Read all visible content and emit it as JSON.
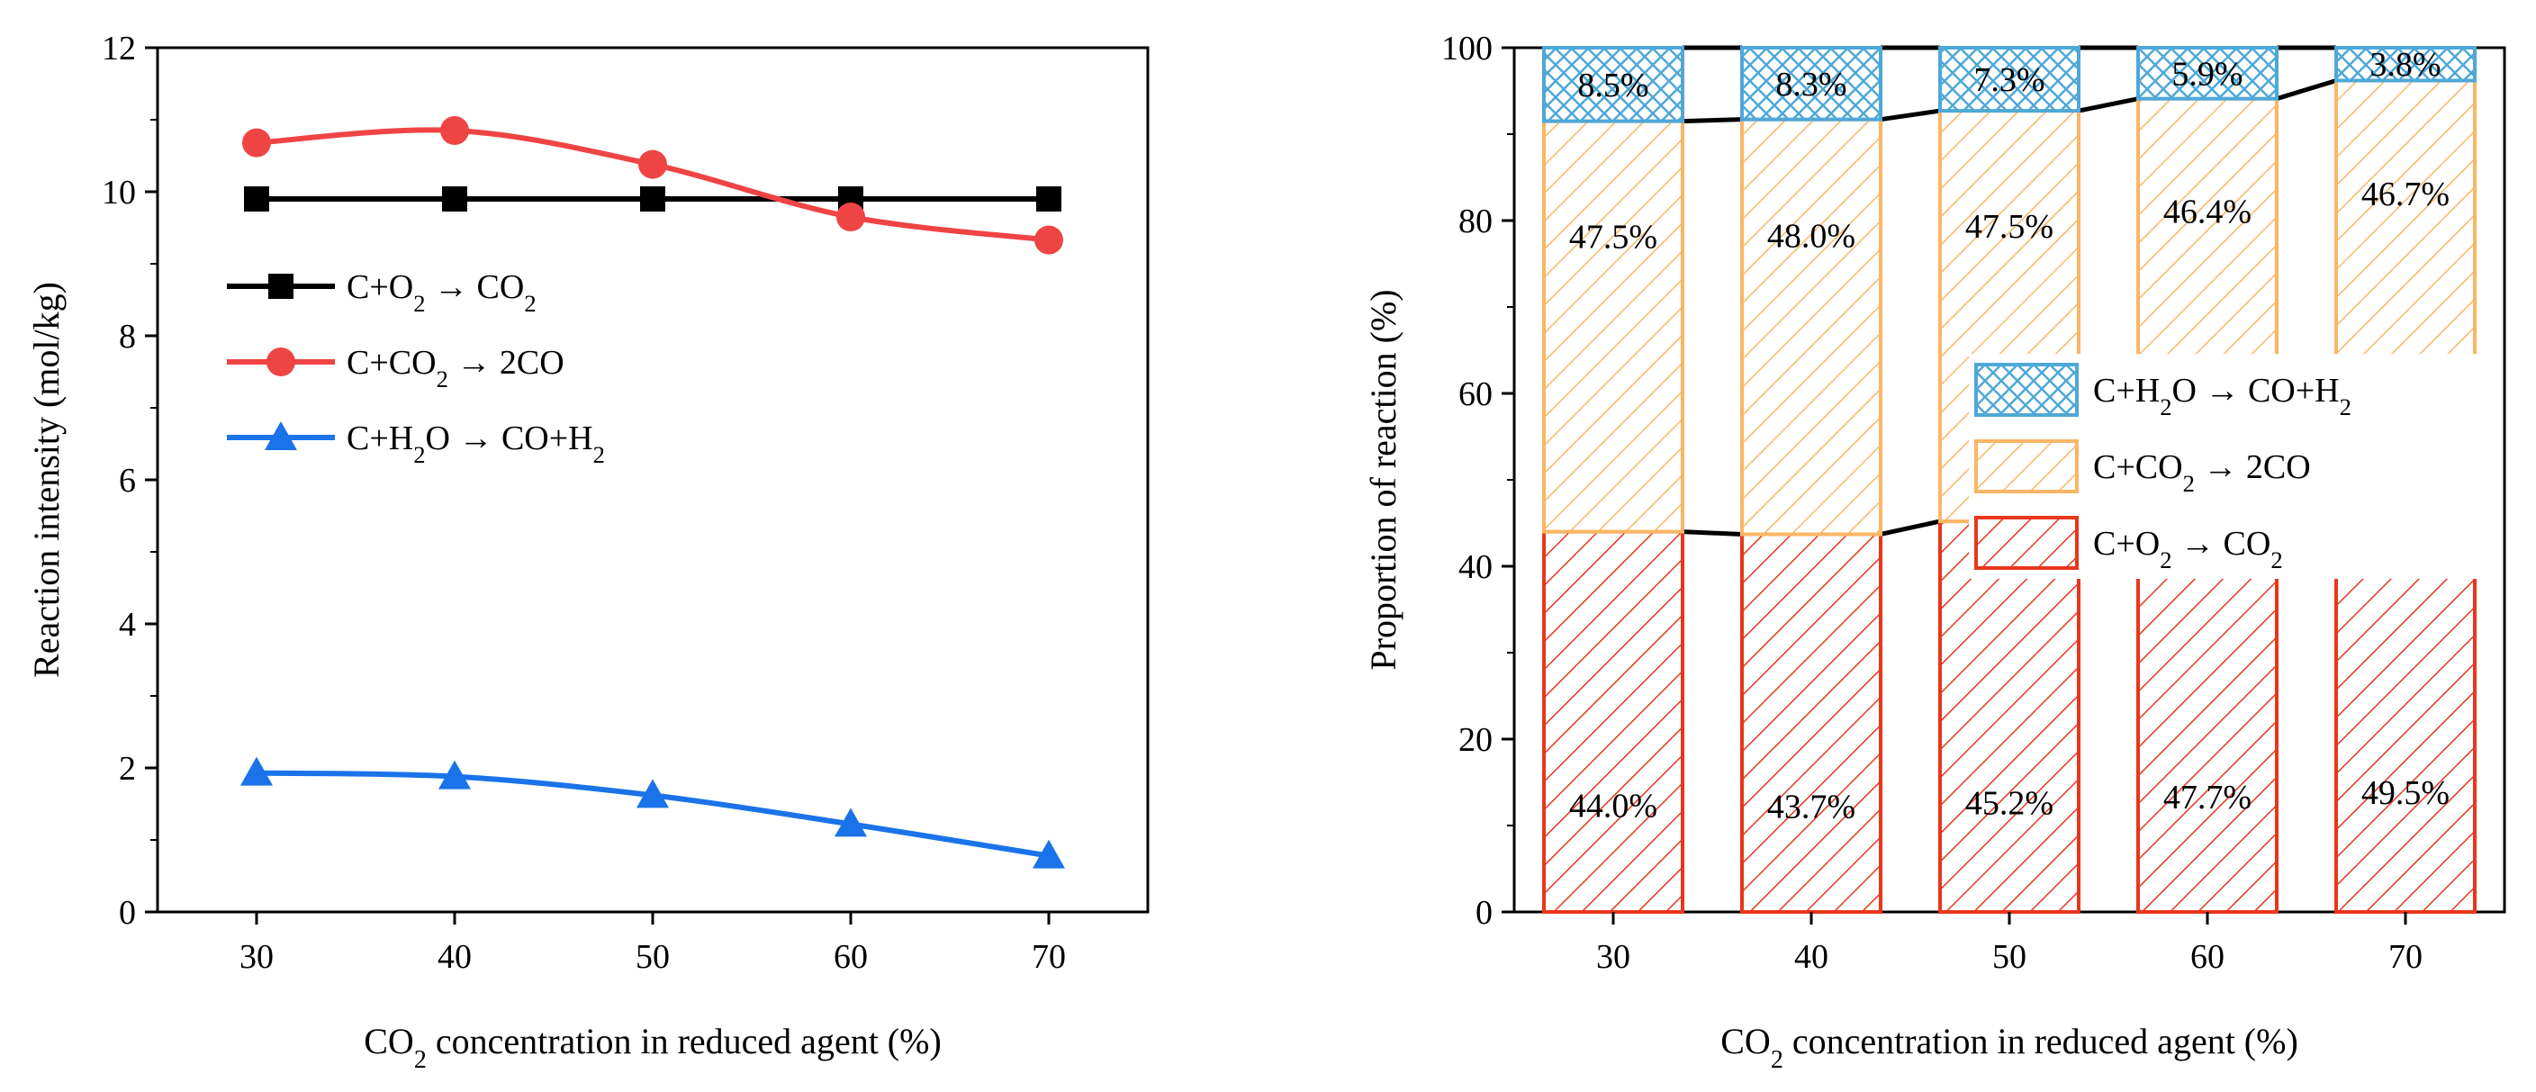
{
  "chart_data": [
    {
      "type": "line",
      "title": "",
      "x": [
        30,
        40,
        50,
        60,
        70
      ],
      "xlim": [
        25,
        75
      ],
      "ylim": [
        0,
        12
      ],
      "xticks": [
        "30",
        "40",
        "50",
        "60",
        "70"
      ],
      "yticks": [
        "0",
        "2",
        "4",
        "6",
        "8",
        "10",
        "12"
      ],
      "xlabel": {
        "pre": "CO",
        "sub": "2",
        "post": " concentration in reduced agent (%)"
      },
      "ylabel": "Reaction intensity (mol/kg)",
      "legend_position": "center-left",
      "series": [
        {
          "name": "C+O2 → CO2",
          "legend_parts": [
            [
              "C+O",
              ""
            ],
            [
              "2",
              "sub"
            ],
            [
              " → CO",
              ""
            ],
            [
              "2",
              "sub"
            ]
          ],
          "color": "#000000",
          "marker": "square",
          "values": [
            9.9,
            9.9,
            9.9,
            9.9,
            9.9
          ]
        },
        {
          "name": "C+CO2 → 2CO",
          "legend_parts": [
            [
              "C+CO",
              ""
            ],
            [
              "2",
              "sub"
            ],
            [
              " → 2CO",
              ""
            ]
          ],
          "color": "#ef4444",
          "marker": "circle",
          "values": [
            10.68,
            10.85,
            10.38,
            9.65,
            9.33
          ]
        },
        {
          "name": "C+H2O → CO+H2",
          "legend_parts": [
            [
              "C+H",
              ""
            ],
            [
              "2",
              "sub"
            ],
            [
              "O → CO+H",
              ""
            ],
            [
              "2",
              "sub"
            ]
          ],
          "color": "#1a73e8",
          "marker": "triangle",
          "values": [
            1.93,
            1.88,
            1.62,
            1.22,
            0.78
          ]
        }
      ]
    },
    {
      "type": "bar",
      "stacked": true,
      "title": "",
      "categories": [
        "30",
        "40",
        "50",
        "60",
        "70"
      ],
      "ylim": [
        0,
        100
      ],
      "yticks": [
        "0",
        "20",
        "40",
        "60",
        "80",
        "100"
      ],
      "xlabel": {
        "pre": "CO",
        "sub": "2",
        "post": " concentration in reduced agent (%)"
      },
      "ylabel": "Proportion of reaction (%)",
      "legend_position": "center-right",
      "series": [
        {
          "name": "C+O2 → CO2",
          "legend_parts": [
            [
              "C+O",
              ""
            ],
            [
              "2",
              "sub"
            ],
            [
              " → CO",
              ""
            ],
            [
              "2",
              "sub"
            ]
          ],
          "color": "#e8361c",
          "pattern": "diag",
          "values": [
            44.0,
            43.7,
            45.2,
            47.7,
            49.5
          ],
          "labels": [
            "44.0%",
            "43.7%",
            "45.2%",
            "47.7%",
            "49.5%"
          ]
        },
        {
          "name": "C+CO2 → 2CO",
          "legend_parts": [
            [
              "C+CO",
              ""
            ],
            [
              "2",
              "sub"
            ],
            [
              " → 2CO",
              ""
            ]
          ],
          "color": "#fbb665",
          "pattern": "diag",
          "values": [
            47.5,
            48.0,
            47.5,
            46.4,
            46.7
          ],
          "labels": [
            "47.5%",
            "48.0%",
            "47.5%",
            "46.4%",
            "46.7%"
          ]
        },
        {
          "name": "C+H2O → CO+H2",
          "legend_parts": [
            [
              "C+H",
              ""
            ],
            [
              "2",
              "sub"
            ],
            [
              "O → CO+H",
              ""
            ],
            [
              "2",
              "sub"
            ]
          ],
          "color": "#4ea8d8",
          "pattern": "cross",
          "values": [
            8.5,
            8.3,
            7.3,
            5.9,
            3.8
          ],
          "labels": [
            "8.5%",
            "8.3%",
            "7.3%",
            "5.9%",
            "3.8%"
          ]
        }
      ]
    }
  ]
}
